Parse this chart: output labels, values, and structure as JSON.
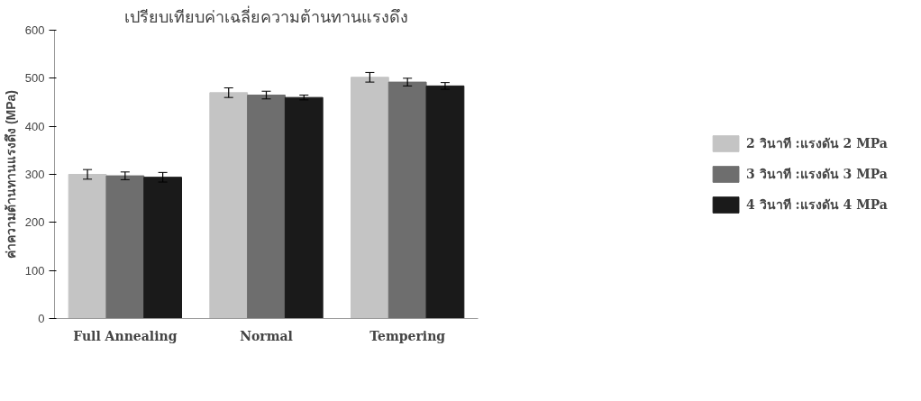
{
  "chart_data": {
    "type": "bar",
    "title": "เปรียบเทียบค่าเฉลี่ยความต้านทานแรงดึง",
    "ylabel": "ค่าความต้านทานแรงดึง (MPa)",
    "categories": [
      "Full Annealing",
      "Normal",
      "Tempering"
    ],
    "series": [
      {
        "name": "2 วินาที :แรงดัน 2 MPa",
        "color": "#c4c4c4",
        "values": [
          300,
          470,
          502
        ],
        "errors": [
          10,
          10,
          10
        ]
      },
      {
        "name": "3 วินาที :แรงดัน 3 MPa",
        "color": "#6e6e6e",
        "values": [
          297,
          465,
          492
        ],
        "errors": [
          8,
          8,
          8
        ]
      },
      {
        "name": "4 วินาที :แรงดัน 4 MPa",
        "color": "#1a1a1a",
        "values": [
          294,
          460,
          484
        ],
        "errors": [
          10,
          5,
          7
        ]
      }
    ],
    "ylim": [
      0,
      600
    ],
    "yticks": [
      0,
      100,
      200,
      300,
      400,
      500,
      600
    ],
    "grid": false,
    "legend": "right"
  }
}
